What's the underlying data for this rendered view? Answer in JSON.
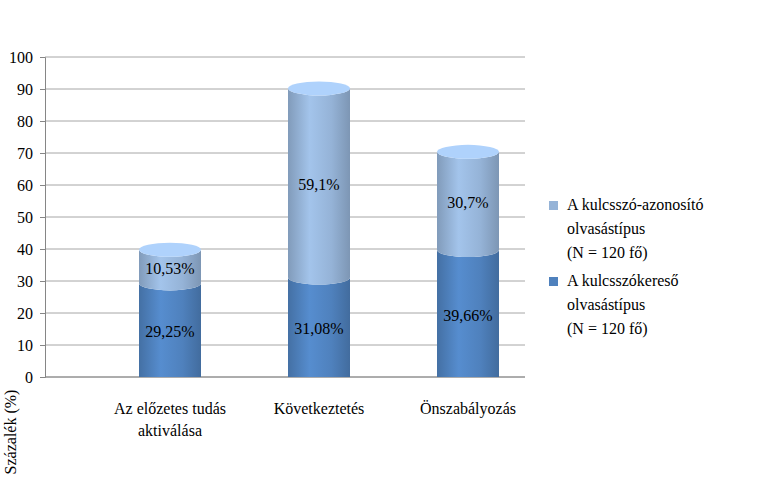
{
  "chart_data": {
    "type": "bar",
    "stacked": true,
    "grid": true,
    "legend": "right",
    "data_labels": true,
    "y_label": "Százalék (%)",
    "categories": [
      "Az előzetes tudás aktiválása",
      "Következtetés",
      "Önszabályozás"
    ],
    "ylim": [
      0,
      100
    ],
    "yticks": [
      0,
      10,
      20,
      30,
      40,
      50,
      60,
      70,
      80,
      90,
      100
    ],
    "series": [
      {
        "name": "A kulcsszókereső olvasástípus (N = 120 fő)",
        "color": "#4f81bd",
        "values": [
          29.25,
          31.08,
          39.66
        ],
        "value_labels": [
          "29,25%",
          "31,08%",
          "39,66%"
        ]
      },
      {
        "name": "A kulcsszó-azonosító olvasástípus (N = 120 fő)",
        "color": "#95b3d7",
        "values": [
          10.53,
          59.1,
          30.7
        ],
        "value_labels": [
          "10,53%",
          "59,1%",
          "30,7%"
        ]
      }
    ]
  }
}
